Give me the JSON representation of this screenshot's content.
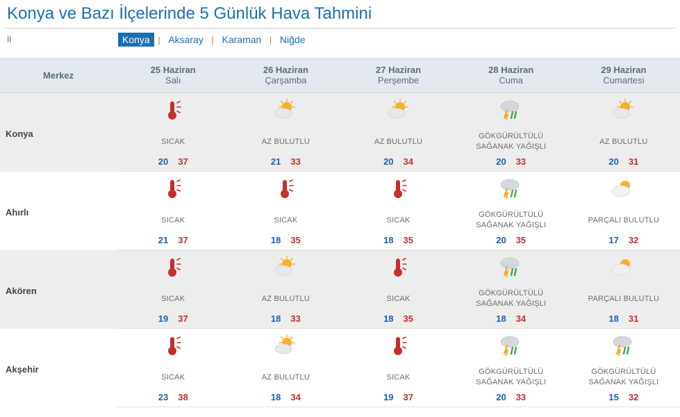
{
  "title": "Konya ve Bazı İlçelerinde 5 Günlük Hava Tahmini",
  "il_label": "İl",
  "provinces": [
    {
      "name": "Konya",
      "selected": true
    },
    {
      "name": "Aksaray",
      "selected": false
    },
    {
      "name": "Karaman",
      "selected": false
    },
    {
      "name": "Niğde",
      "selected": false
    }
  ],
  "columns": {
    "merkez": "Merkez",
    "days": [
      {
        "date": "25 Haziran",
        "dow": "Salı"
      },
      {
        "date": "26 Haziran",
        "dow": "Çarşamba"
      },
      {
        "date": "27 Haziran",
        "dow": "Perşembe"
      },
      {
        "date": "28 Haziran",
        "dow": "Cuma"
      },
      {
        "date": "29 Haziran",
        "dow": "Cumartesi"
      }
    ]
  },
  "weather_labels": {
    "hot": "SICAK",
    "partly": "AZ BULUTLU",
    "storm": "GÖKGÜRÜLTÜLÜ SAĞANAK YAĞIŞLI",
    "pcloud": "PARÇALI BULUTLU"
  },
  "rows": [
    {
      "name": "Konya",
      "band": "odd",
      "cells": [
        {
          "icon": "hot",
          "label": "hot",
          "tmin": 20,
          "tmax": 37
        },
        {
          "icon": "partly",
          "label": "partly",
          "tmin": 21,
          "tmax": 33
        },
        {
          "icon": "partly",
          "label": "partly",
          "tmin": 20,
          "tmax": 34
        },
        {
          "icon": "storm",
          "label": "storm",
          "tmin": 20,
          "tmax": 33
        },
        {
          "icon": "partly",
          "label": "partly",
          "tmin": 20,
          "tmax": 31
        }
      ]
    },
    {
      "name": "Ahırlı",
      "band": "even",
      "cells": [
        {
          "icon": "hot",
          "label": "hot",
          "tmin": 21,
          "tmax": 37
        },
        {
          "icon": "hot",
          "label": "hot",
          "tmin": 18,
          "tmax": 35
        },
        {
          "icon": "hot",
          "label": "hot",
          "tmin": 18,
          "tmax": 35
        },
        {
          "icon": "storm",
          "label": "storm",
          "tmin": 20,
          "tmax": 35
        },
        {
          "icon": "pcloud",
          "label": "pcloud",
          "tmin": 17,
          "tmax": 32
        }
      ]
    },
    {
      "name": "Akören",
      "band": "odd",
      "cells": [
        {
          "icon": "hot",
          "label": "hot",
          "tmin": 19,
          "tmax": 37
        },
        {
          "icon": "partly",
          "label": "partly",
          "tmin": 18,
          "tmax": 33
        },
        {
          "icon": "hot",
          "label": "hot",
          "tmin": 18,
          "tmax": 35
        },
        {
          "icon": "storm",
          "label": "storm",
          "tmin": 18,
          "tmax": 34
        },
        {
          "icon": "pcloud",
          "label": "pcloud",
          "tmin": 18,
          "tmax": 31
        }
      ]
    },
    {
      "name": "Akşehir",
      "band": "even",
      "cells": [
        {
          "icon": "hot",
          "label": "hot",
          "tmin": 23,
          "tmax": 38
        },
        {
          "icon": "partly",
          "label": "partly",
          "tmin": 18,
          "tmax": 34
        },
        {
          "icon": "hot",
          "label": "hot",
          "tmin": 19,
          "tmax": 37
        },
        {
          "icon": "storm",
          "label": "storm",
          "tmin": 20,
          "tmax": 33
        },
        {
          "icon": "storm",
          "label": "storm",
          "tmin": 15,
          "tmax": 32
        }
      ]
    }
  ],
  "colors": {
    "title": "#1a6fb4",
    "link": "#1a6fb4",
    "sep": "#e07a2a",
    "th_bg": "#e4e9ef",
    "odd_bg": "#ededed",
    "even_bg": "#ffffff",
    "tmin": "#1a5fb4",
    "tmax": "#c2302f"
  }
}
